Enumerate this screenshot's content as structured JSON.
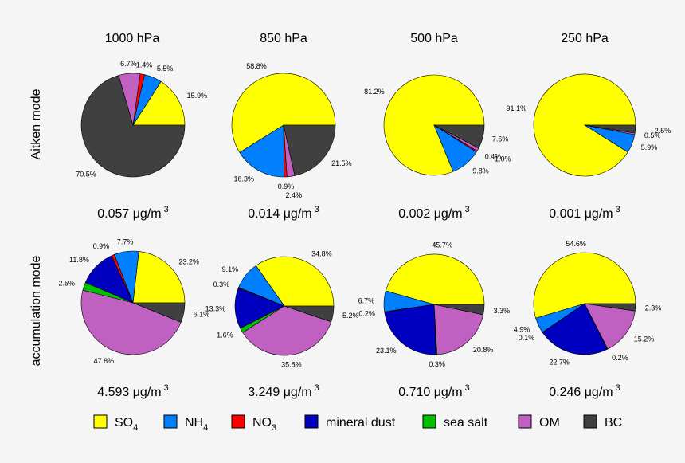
{
  "chart_data": {
    "type": "pie",
    "pressure_levels": [
      "1000  hPa",
      "850  hPa",
      "500  hPa",
      "250  hPa"
    ],
    "modes": [
      "Aitken mode",
      "accumulation mode"
    ],
    "unit_label": "μg/m",
    "unit_exponent": "3",
    "component_colors": {
      "SO4": "#ffff00",
      "NH4": "#0080ff",
      "NO3": "#ff0000",
      "mineral dust": "#0000c0",
      "sea salt": "#00c000",
      "OM": "#c060c0",
      "BC": "#404040"
    },
    "legend": [
      {
        "key": "SO4",
        "label": "SO",
        "sub": "4"
      },
      {
        "key": "NH4",
        "label": "NH",
        "sub": "4"
      },
      {
        "key": "NO3",
        "label": "NO",
        "sub": "3"
      },
      {
        "key": "mineral dust",
        "label": "mineral dust",
        "sub": ""
      },
      {
        "key": "sea salt",
        "label": "sea salt",
        "sub": ""
      },
      {
        "key": "OM",
        "label": "OM",
        "sub": ""
      },
      {
        "key": "BC",
        "label": "BC",
        "sub": ""
      }
    ],
    "panels": [
      {
        "mode": "Aitken mode",
        "level": "1000  hPa",
        "total": "0.057",
        "slices": [
          {
            "component": "SO4",
            "value": 15.9,
            "label": "15.9%"
          },
          {
            "component": "NH4",
            "value": 5.5,
            "label": "5.5%"
          },
          {
            "component": "NO3",
            "value": 1.4,
            "label": "1.4%"
          },
          {
            "component": "OM",
            "value": 6.7,
            "label": "6.7%"
          },
          {
            "component": "BC",
            "value": 70.5,
            "label": "70.5%"
          }
        ]
      },
      {
        "mode": "Aitken mode",
        "level": "850  hPa",
        "total": "0.014",
        "slices": [
          {
            "component": "SO4",
            "value": 58.8,
            "label": "58.8%"
          },
          {
            "component": "NH4",
            "value": 16.3,
            "label": "16.3%"
          },
          {
            "component": "NO3",
            "value": 0.9,
            "label": "0.9%"
          },
          {
            "component": "OM",
            "value": 2.4,
            "label": "2.4%"
          },
          {
            "component": "BC",
            "value": 21.5,
            "label": "21.5%"
          }
        ]
      },
      {
        "mode": "Aitken mode",
        "level": "500  hPa",
        "total": "0.002",
        "slices": [
          {
            "component": "SO4",
            "value": 81.2,
            "label": "81.2%"
          },
          {
            "component": "NH4",
            "value": 9.8,
            "label": "9.8%"
          },
          {
            "component": "NO3",
            "value": 0.4,
            "label": "0.4%"
          },
          {
            "component": "OM",
            "value": 1.0,
            "label": "1.0%"
          },
          {
            "component": "BC",
            "value": 7.6,
            "label": "7.6%"
          }
        ]
      },
      {
        "mode": "Aitken mode",
        "level": "250  hPa",
        "total": "0.001",
        "slices": [
          {
            "component": "SO4",
            "value": 91.1,
            "label": "91.1%"
          },
          {
            "component": "NH4",
            "value": 5.9,
            "label": "5.9%"
          },
          {
            "component": "OM",
            "value": 0.5,
            "label": "0.5%"
          },
          {
            "component": "BC",
            "value": 2.5,
            "label": "2.5%"
          }
        ]
      },
      {
        "mode": "accumulation mode",
        "level": "1000  hPa",
        "total": "4.593",
        "slices": [
          {
            "component": "SO4",
            "value": 23.2,
            "label": "23.2%"
          },
          {
            "component": "NH4",
            "value": 7.7,
            "label": "7.7%"
          },
          {
            "component": "NO3",
            "value": 0.9,
            "label": "0.9%"
          },
          {
            "component": "mineral dust",
            "value": 11.8,
            "label": "11.8%"
          },
          {
            "component": "sea salt",
            "value": 2.5,
            "label": "2.5%"
          },
          {
            "component": "OM",
            "value": 47.8,
            "label": "47.8%"
          },
          {
            "component": "BC",
            "value": 6.1,
            "label": "6.1%"
          }
        ]
      },
      {
        "mode": "accumulation mode",
        "level": "850  hPa",
        "total": "3.249",
        "slices": [
          {
            "component": "SO4",
            "value": 34.8,
            "label": "34.8%"
          },
          {
            "component": "NH4",
            "value": 9.1,
            "label": "9.1%"
          },
          {
            "component": "NO3",
            "value": 0.3,
            "label": "0.3%"
          },
          {
            "component": "mineral dust",
            "value": 13.3,
            "label": "13.3%"
          },
          {
            "component": "sea salt",
            "value": 1.6,
            "label": "1.6%"
          },
          {
            "component": "OM",
            "value": 35.8,
            "label": "35.8%"
          },
          {
            "component": "BC",
            "value": 5.2,
            "label": "5.2%"
          }
        ]
      },
      {
        "mode": "accumulation mode",
        "level": "500  hPa",
        "total": "0.710",
        "slices": [
          {
            "component": "SO4",
            "value": 45.7,
            "label": "45.7%"
          },
          {
            "component": "NH4",
            "value": 6.7,
            "label": "6.7%"
          },
          {
            "component": "NO3",
            "value": 0.2,
            "label": "0.2%"
          },
          {
            "component": "mineral dust",
            "value": 23.1,
            "label": "23.1%"
          },
          {
            "component": "sea salt",
            "value": 0.3,
            "label": "0.3%"
          },
          {
            "component": "OM",
            "value": 20.8,
            "label": "20.8%"
          },
          {
            "component": "BC",
            "value": 3.3,
            "label": "3.3%"
          }
        ]
      },
      {
        "mode": "accumulation mode",
        "level": "250  hPa",
        "total": "0.246",
        "slices": [
          {
            "component": "SO4",
            "value": 54.6,
            "label": "54.6%"
          },
          {
            "component": "NH4",
            "value": 4.9,
            "label": "4.9%"
          },
          {
            "component": "NO3",
            "value": 0.1,
            "label": "0.1%"
          },
          {
            "component": "mineral dust",
            "value": 22.7,
            "label": "22.7%"
          },
          {
            "component": "sea salt",
            "value": 0.2,
            "label": "0.2%"
          },
          {
            "component": "OM",
            "value": 15.2,
            "label": "15.2%"
          },
          {
            "component": "BC",
            "value": 2.3,
            "label": "2.3%"
          }
        ]
      }
    ]
  }
}
